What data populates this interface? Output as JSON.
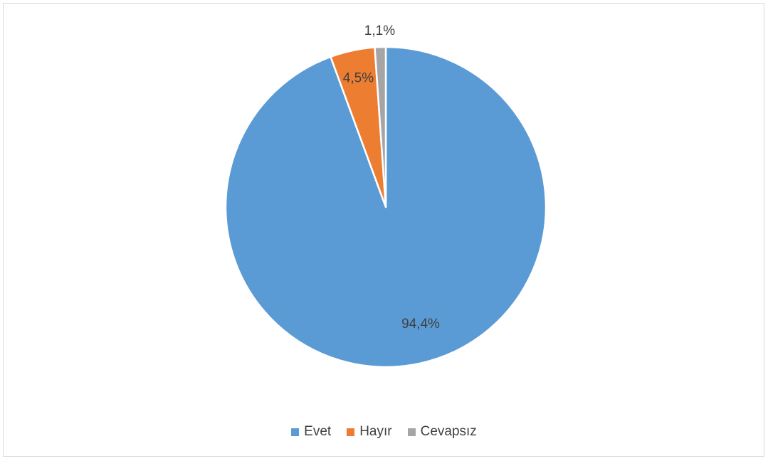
{
  "chart_data": {
    "type": "pie",
    "categories": [
      "Evet",
      "Hayır",
      "Cevapsız"
    ],
    "values": [
      94.4,
      4.5,
      1.1
    ],
    "labels": [
      "94,4%",
      "4,5%",
      "1,1%"
    ],
    "colors": [
      "#5b9bd5",
      "#ed7d31",
      "#a5a5a5"
    ],
    "start_angle": "12 o'clock, counter-clockwise order: Cevapsız, Hayır, then Evet clockwise",
    "legend_position": "bottom"
  }
}
